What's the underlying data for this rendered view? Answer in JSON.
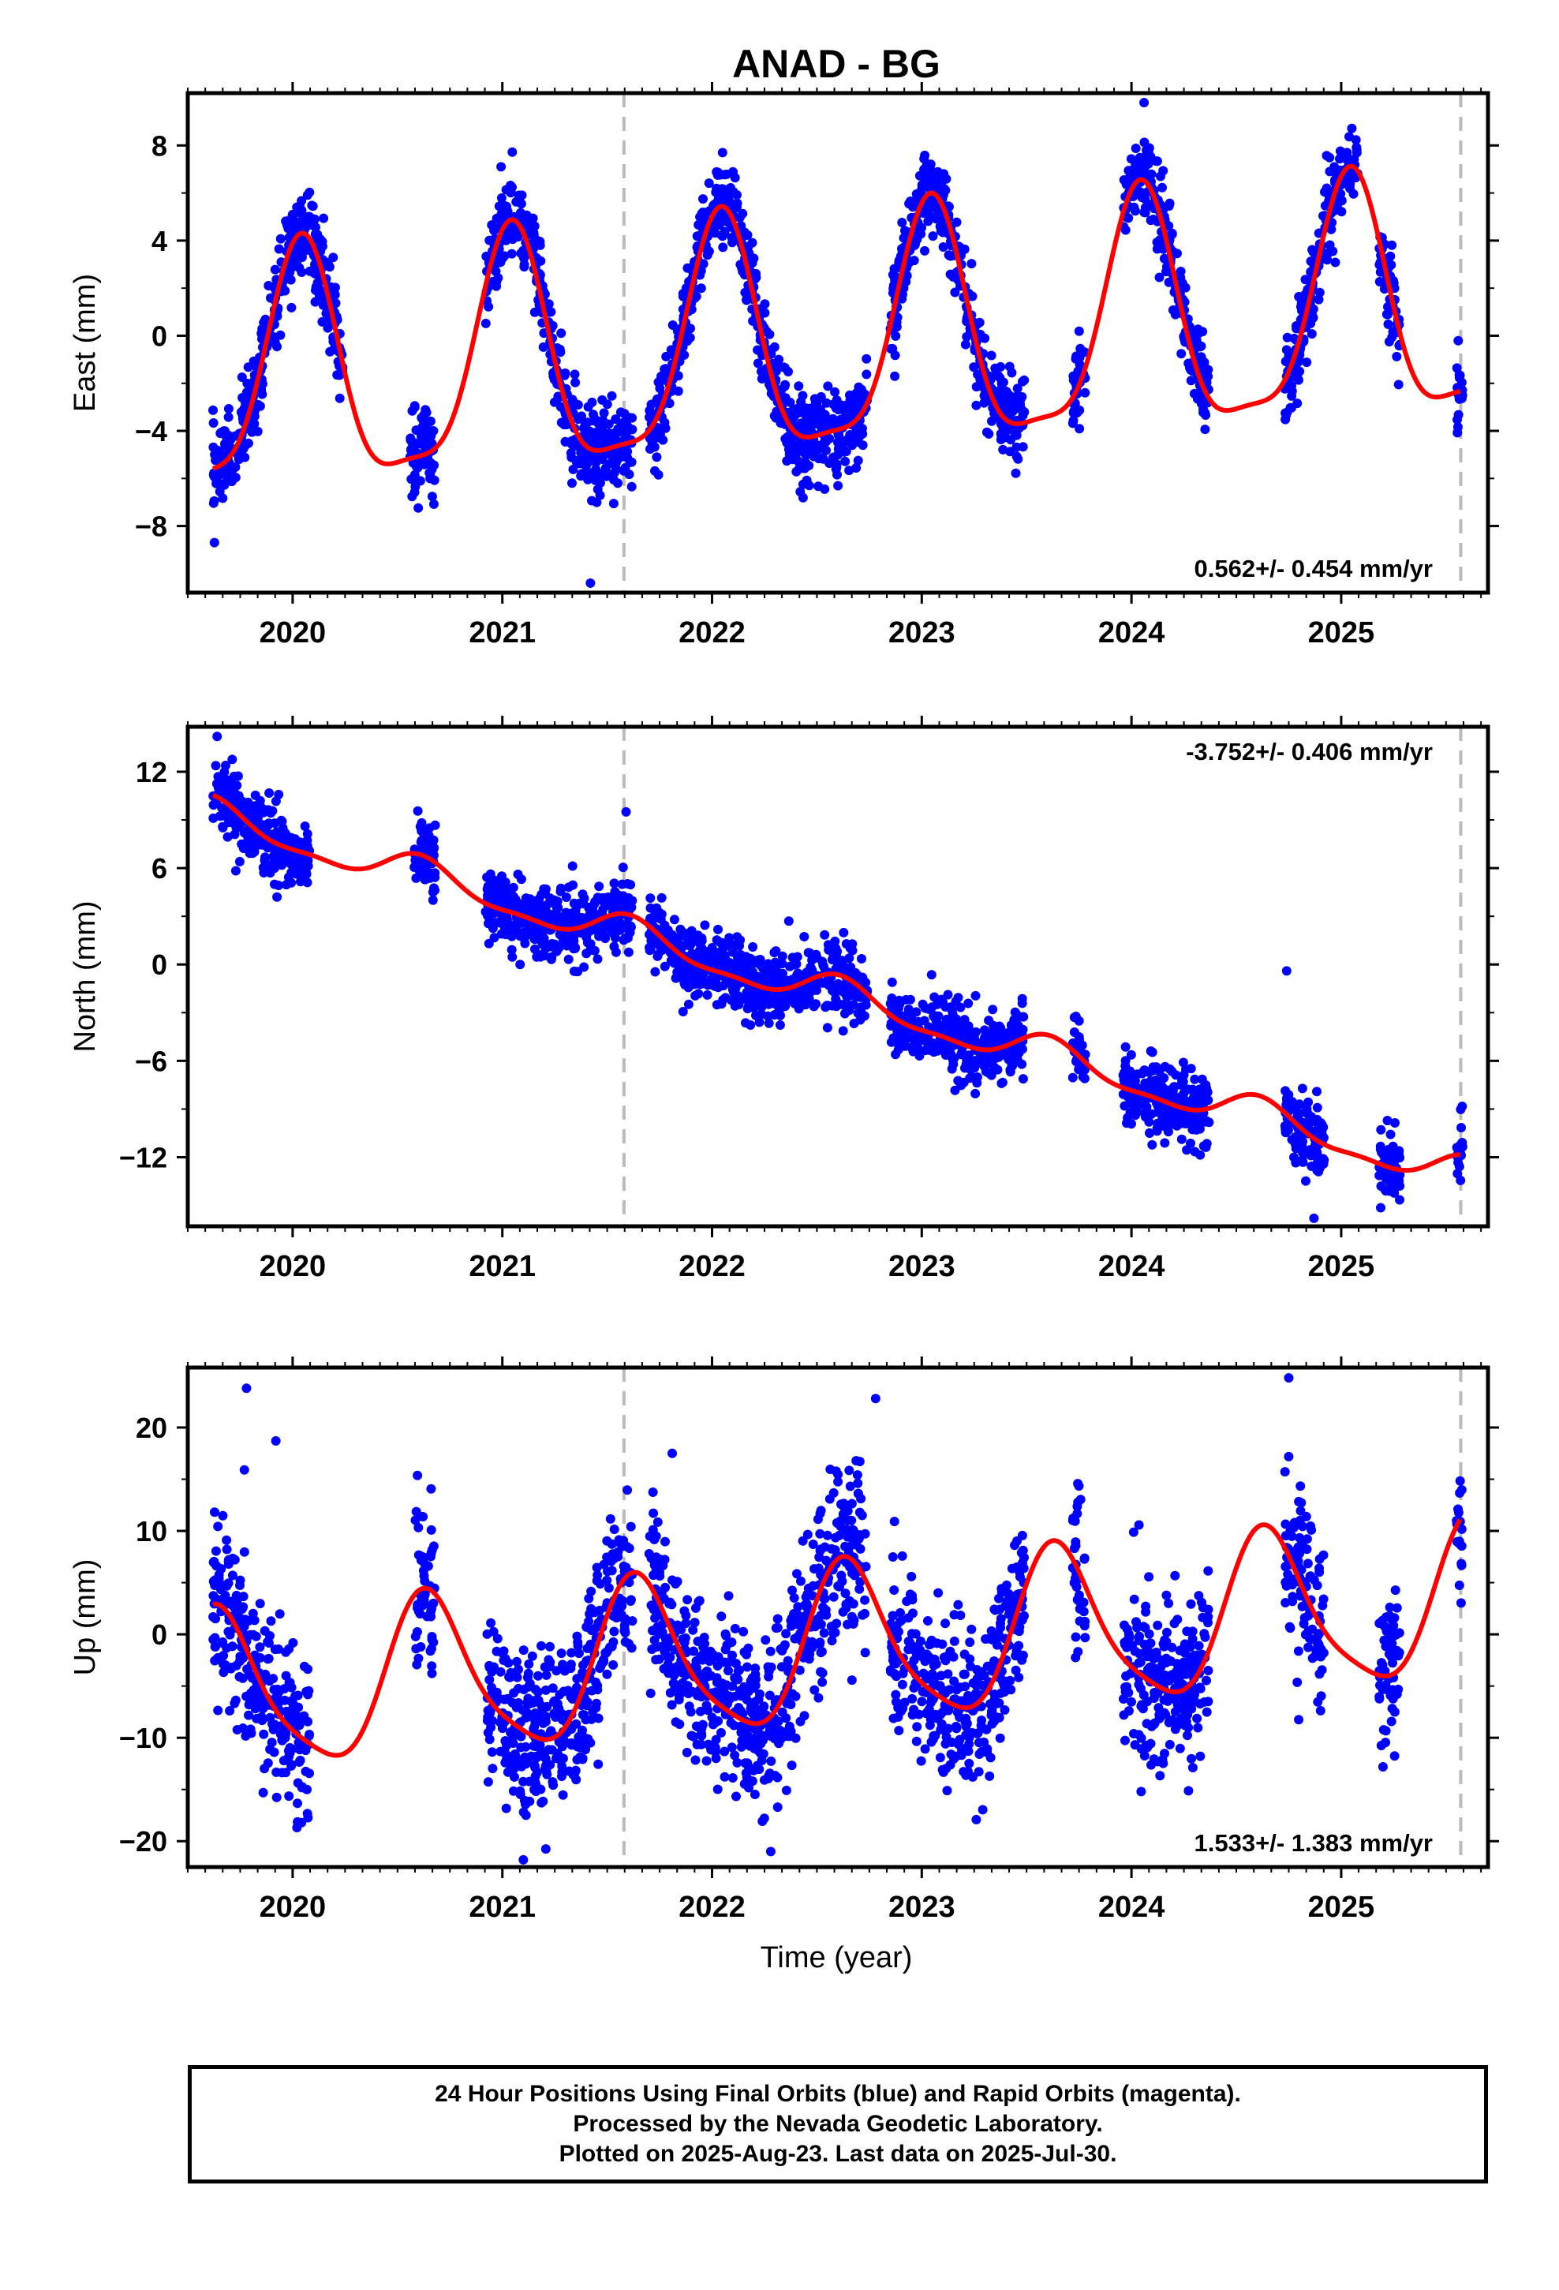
{
  "figure": {
    "title": "ANAD - BG",
    "xlabel": "Time (year)",
    "footer": [
      "24 Hour Positions Using Final Orbits (blue) and Rapid Orbits (magenta).",
      "Processed by the Nevada Geodetic Laboratory.",
      "Plotted on 2025-Aug-23. Last data on 2025-Jul-30."
    ],
    "colors": {
      "points": "#0000ff",
      "model": "#ff0000",
      "events": "#bbbbbb"
    }
  },
  "chart_data": [
    {
      "type": "scatter",
      "panel": "east",
      "ylabel": "East (mm)",
      "rate_label": "0.562+/- 0.454 mm/yr",
      "rate_position": "bottom-right",
      "xlim": [
        2019.5,
        2025.7
      ],
      "ylim": [
        -10.8,
        10.2
      ],
      "yticks": [
        -8,
        -4,
        0,
        4,
        8
      ],
      "ytick_labels": [
        "−8",
        "−4",
        "0",
        "4",
        "8"
      ],
      "xticks": [
        2020,
        2021,
        2022,
        2023,
        2024,
        2025
      ],
      "event_lines": [
        2021.58,
        2025.57
      ],
      "segments": [
        [
          2019.62,
          2020.24
        ],
        [
          2020.56,
          2020.68
        ],
        [
          2020.92,
          2021.62
        ],
        [
          2021.7,
          2022.74
        ],
        [
          2022.85,
          2023.49
        ],
        [
          2023.72,
          2023.78
        ],
        [
          2023.96,
          2024.37
        ],
        [
          2024.73,
          2025.08
        ],
        [
          2025.18,
          2025.28
        ],
        [
          2025.55,
          2025.58
        ]
      ],
      "model": {
        "ref_year": 2022.5,
        "offset": -0.5,
        "rate": 0.562,
        "annual": {
          "amplitude": 4.9,
          "peak_year_fraction": 0.04
        },
        "semiannual": {
          "amplitude": 1.3,
          "peak_year_fraction": 0.05
        },
        "steps": [
          {
            "year": 2021.58,
            "size": 0.0
          }
        ],
        "range": [
          2019.62,
          2025.57
        ]
      },
      "scatter_sigma": 0.9,
      "outliers": [
        [
          2024.06,
          9.8
        ],
        [
          2021.42,
          -10.4
        ],
        [
          2020.02,
          5.4
        ],
        [
          2022.05,
          7.7
        ]
      ]
    },
    {
      "type": "scatter",
      "panel": "north",
      "ylabel": "North (mm)",
      "rate_label": "-3.752+/- 0.406 mm/yr",
      "rate_position": "top-right",
      "xlim": [
        2019.5,
        2025.7
      ],
      "ylim": [
        -16.3,
        14.8
      ],
      "yticks": [
        -12,
        -6,
        0,
        6,
        12
      ],
      "ytick_labels": [
        "−12",
        "−6",
        "0",
        "6",
        "12"
      ],
      "xticks": [
        2020,
        2021,
        2022,
        2023,
        2024,
        2025
      ],
      "event_lines": [
        2021.58,
        2025.57
      ],
      "segments": [
        [
          2019.62,
          2020.08
        ],
        [
          2020.58,
          2020.68
        ],
        [
          2020.92,
          2021.62
        ],
        [
          2021.7,
          2022.74
        ],
        [
          2022.85,
          2023.49
        ],
        [
          2023.72,
          2023.78
        ],
        [
          2023.96,
          2024.37
        ],
        [
          2024.73,
          2024.92
        ],
        [
          2025.18,
          2025.28
        ],
        [
          2025.55,
          2025.58
        ]
      ],
      "model": {
        "ref_year": 2022.5,
        "offset": -1.6,
        "rate": -3.752,
        "annual": {
          "amplitude": 1.0,
          "peak_year_fraction": 0.62
        },
        "semiannual": {
          "amplitude": 0.35,
          "peak_year_fraction": 0.1
        },
        "steps": [
          {
            "year": 2021.58,
            "size": 0.0
          }
        ],
        "range": [
          2019.62,
          2025.57
        ]
      },
      "scatter_sigma": 1.1,
      "outliers": [
        [
          2019.64,
          14.2
        ],
        [
          2024.74,
          -0.4
        ],
        [
          2024.87,
          -15.8
        ],
        [
          2021.59,
          9.5
        ]
      ]
    },
    {
      "type": "scatter",
      "panel": "up",
      "ylabel": "Up (mm)",
      "rate_label": "1.533+/- 1.383 mm/yr",
      "rate_position": "bottom-right",
      "xlim": [
        2019.5,
        2025.7
      ],
      "ylim": [
        -22.5,
        25.8
      ],
      "yticks": [
        -20,
        -10,
        0,
        10,
        20
      ],
      "ytick_labels": [
        "−20",
        "−10",
        "0",
        "10",
        "20"
      ],
      "xticks": [
        2020,
        2021,
        2022,
        2023,
        2024,
        2025
      ],
      "event_lines": [
        2021.58,
        2025.57
      ],
      "segments": [
        [
          2019.62,
          2020.08
        ],
        [
          2020.58,
          2020.68
        ],
        [
          2020.92,
          2021.62
        ],
        [
          2021.7,
          2022.74
        ],
        [
          2022.85,
          2023.49
        ],
        [
          2023.72,
          2023.78
        ],
        [
          2023.96,
          2024.37
        ],
        [
          2024.73,
          2024.92
        ],
        [
          2025.18,
          2025.28
        ],
        [
          2025.55,
          2025.58
        ]
      ],
      "model": {
        "ref_year": 2022.5,
        "offset": -1.5,
        "rate": 1.533,
        "annual": {
          "amplitude": 7.5,
          "peak_year_fraction": 0.65
        },
        "semiannual": {
          "amplitude": 1.5,
          "peak_year_fraction": 0.1
        },
        "steps": [
          {
            "year": 2021.58,
            "size": 0.0
          }
        ],
        "range": [
          2019.62,
          2025.57
        ]
      },
      "scatter_sigma": 4.0,
      "outliers": [
        [
          2019.78,
          23.8
        ],
        [
          2019.92,
          18.7
        ],
        [
          2024.75,
          24.8
        ],
        [
          2021.1,
          -21.8
        ],
        [
          2022.28,
          -21.0
        ],
        [
          2022.78,
          22.8
        ],
        [
          2021.81,
          17.5
        ],
        [
          2019.77,
          15.9
        ]
      ]
    }
  ]
}
